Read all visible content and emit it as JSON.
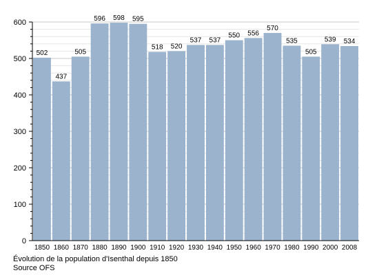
{
  "chart_data": {
    "type": "bar",
    "categories": [
      "1850",
      "1860",
      "1870",
      "1880",
      "1890",
      "1900",
      "1910",
      "1920",
      "1930",
      "1940",
      "1950",
      "1960",
      "1970",
      "1980",
      "1990",
      "2000",
      "2008"
    ],
    "values": [
      502,
      437,
      505,
      596,
      598,
      595,
      518,
      520,
      537,
      537,
      550,
      556,
      570,
      535,
      505,
      539,
      534
    ],
    "ylim": [
      0,
      600
    ],
    "yticks": [
      0,
      100,
      200,
      300,
      400,
      500,
      600
    ],
    "grid": true,
    "bar_color": "#9bb3cc",
    "title": "",
    "xlabel": "",
    "ylabel": ""
  },
  "caption": {
    "line1": "Évolution de la population d'Isenthal depuis 1850",
    "line2": "Source OFS"
  }
}
